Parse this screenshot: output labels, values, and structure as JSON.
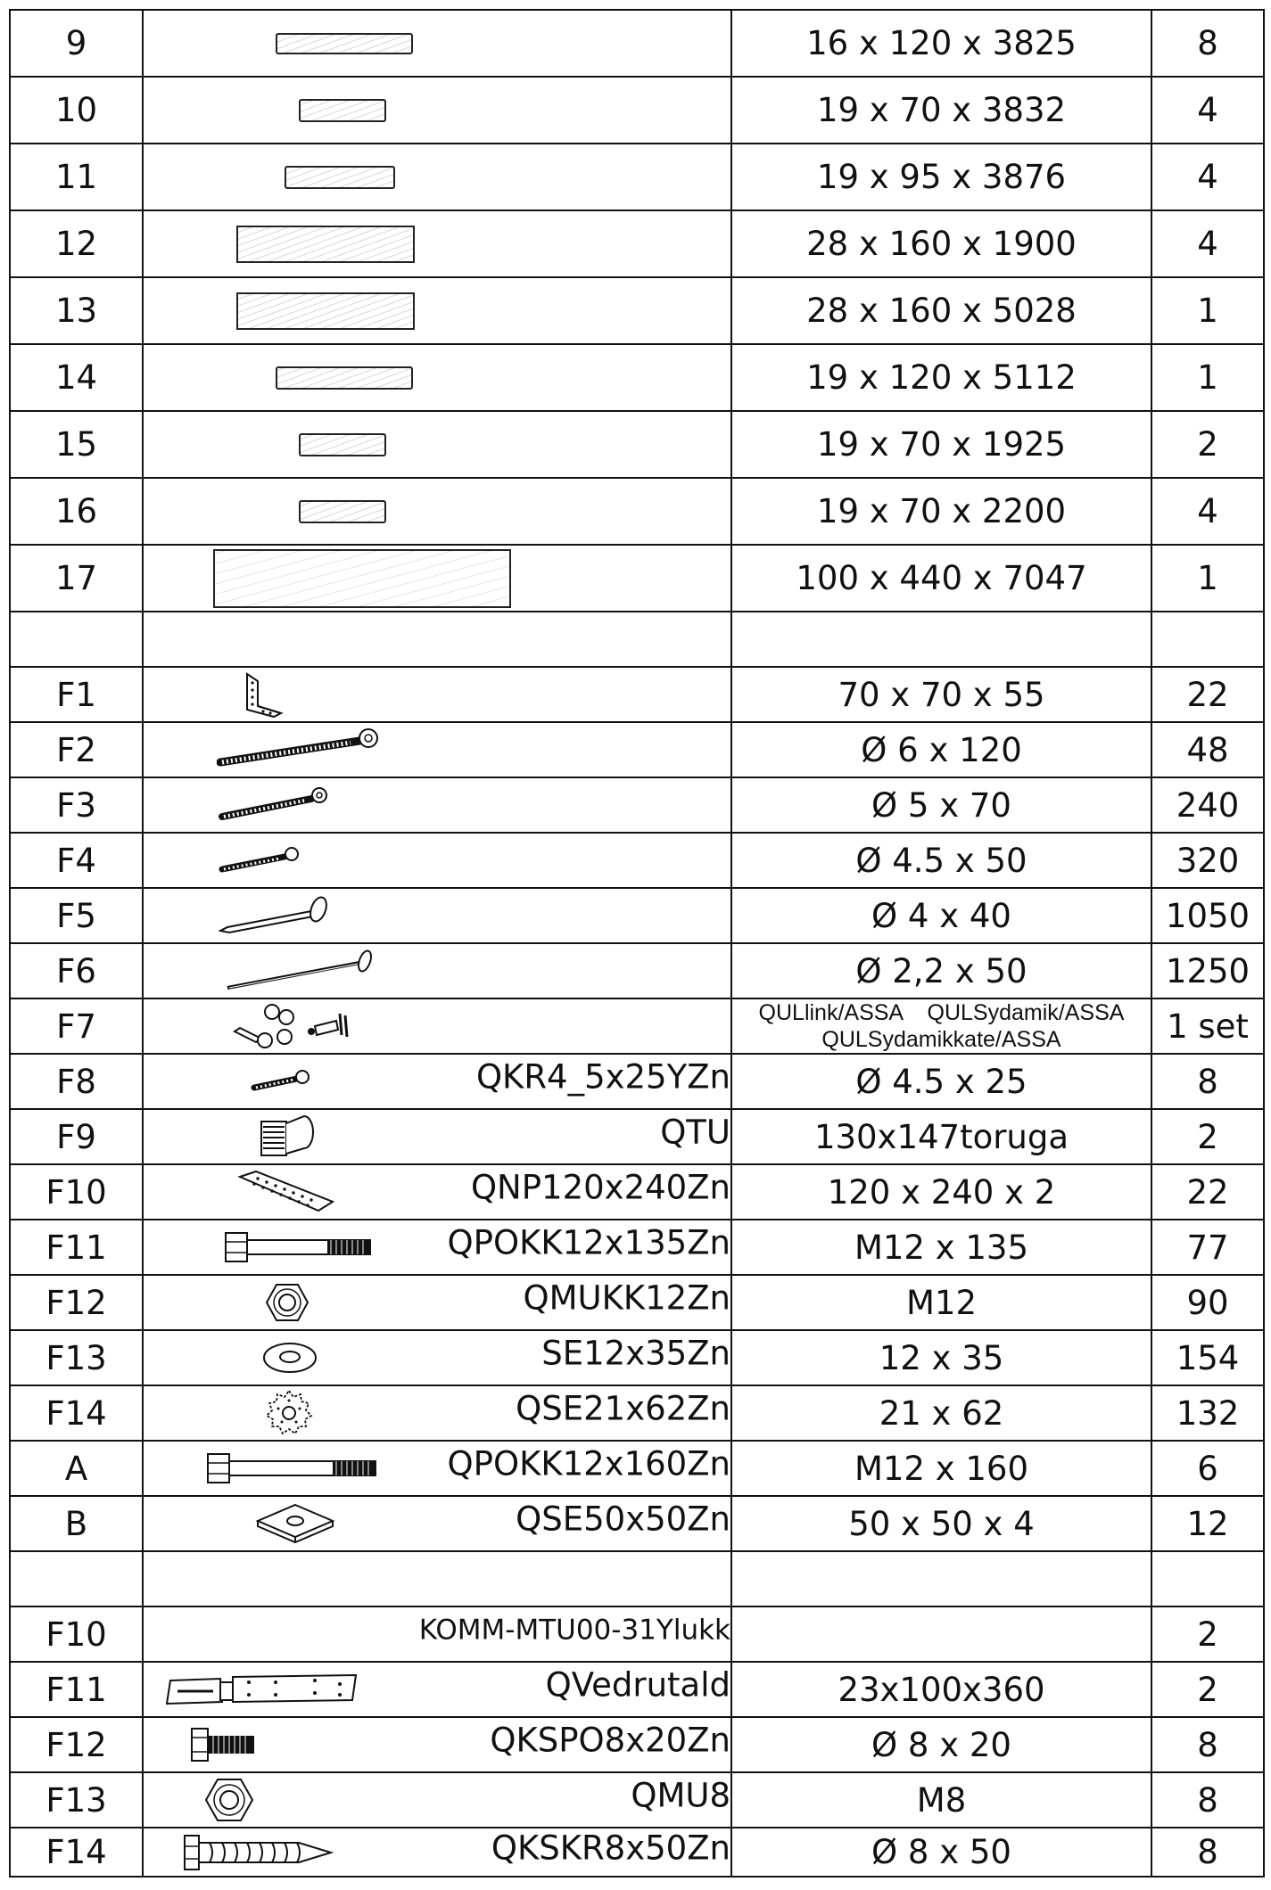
{
  "rows": [
    {
      "id": "9",
      "dim": "16 x 120 x 3825",
      "qty": "8",
      "icon": "board-icon"
    },
    {
      "id": "10",
      "dim": "19 x 70 x 3832",
      "qty": "4",
      "icon": "board-icon"
    },
    {
      "id": "11",
      "dim": "19 x 95 x 3876",
      "qty": "4",
      "icon": "board-icon"
    },
    {
      "id": "12",
      "dim": "28 x 160 x 1900",
      "qty": "4",
      "icon": "board-icon"
    },
    {
      "id": "13",
      "dim": "28 x 160 x 5028",
      "qty": "1",
      "icon": "board-icon"
    },
    {
      "id": "14",
      "dim": "19 x 120 x 5112",
      "qty": "1",
      "icon": "board-icon"
    },
    {
      "id": "15",
      "dim": "19 x 70 x 1925",
      "qty": "2",
      "icon": "board-icon"
    },
    {
      "id": "16",
      "dim": "19 x 70 x 2200",
      "qty": "4",
      "icon": "board-icon"
    },
    {
      "id": "17",
      "dim": "100 x 440 x 7047",
      "qty": "1",
      "icon": "beam-icon"
    },
    {
      "id": "F1",
      "dim": "70 x 70 x 55",
      "qty": "22",
      "icon": "angle-bracket-icon"
    },
    {
      "id": "F2",
      "dim": "Ø 6 x 120",
      "qty": "48",
      "icon": "screw-icon"
    },
    {
      "id": "F3",
      "dim": "Ø 5 x 70",
      "qty": "240",
      "icon": "screw-icon"
    },
    {
      "id": "F4",
      "dim": "Ø 4.5 x 50",
      "qty": "320",
      "icon": "screw-icon"
    },
    {
      "id": "F5",
      "dim": "Ø 4 x 40",
      "qty": "1050",
      "icon": "nail-icon"
    },
    {
      "id": "F6",
      "dim": "Ø 2,2 x 50",
      "qty": "1250",
      "icon": "nail-icon"
    },
    {
      "id": "F7",
      "dim_lines": [
        "QULlink/ASSA    QULSydamik/ASSA",
        "QULSydamikkate/ASSA"
      ],
      "qty": "1 set",
      "icon": "door-handle-lock-icon"
    },
    {
      "id": "F8",
      "code": "QKR4_5x25YZn",
      "dim": "Ø 4.5 x 25",
      "qty": "8",
      "icon": "screw-icon"
    },
    {
      "id": "F9",
      "code": "QTU",
      "dim": "130x147toruga",
      "qty": "2",
      "icon": "vent-grille-icon"
    },
    {
      "id": "F10",
      "code": "QNP120x240Zn",
      "dim": "120 x 240 x 2",
      "qty": "22",
      "icon": "nail-plate-icon"
    },
    {
      "id": "F11",
      "code": "QPOKK12x135Zn",
      "dim": "M12 x 135",
      "qty": "77",
      "icon": "bolt-icon"
    },
    {
      "id": "F12",
      "code": "QMUKK12Zn",
      "dim": "M12",
      "qty": "90",
      "icon": "hex-nut-icon"
    },
    {
      "id": "F13",
      "code": "SE12x35Zn",
      "dim": "12 x 35",
      "qty": "154",
      "icon": "washer-icon"
    },
    {
      "id": "F14",
      "code": "QSE21x62Zn",
      "dim": "21 x 62",
      "qty": "132",
      "icon": "toothed-washer-icon"
    },
    {
      "id": "A",
      "code": "QPOKK12x160Zn",
      "dim": "M12 x 160",
      "qty": "6",
      "icon": "bolt-icon"
    },
    {
      "id": "B",
      "code": "QSE50x50Zn",
      "dim": "50 x 50 x 4",
      "qty": "12",
      "icon": "square-washer-icon"
    },
    {
      "id": "F10",
      "code": "KOMM-MTU00-31Ylukk",
      "dim": "",
      "qty": "2",
      "icon": ""
    },
    {
      "id": "F11",
      "code": "QVedrutald",
      "dim": "23x100x360",
      "qty": "2",
      "icon": "strap-hinge-icon"
    },
    {
      "id": "F12",
      "code": "QKSPO8x20Zn",
      "dim": "Ø 8 x 20",
      "qty": "8",
      "icon": "short-bolt-icon"
    },
    {
      "id": "F13",
      "code": "QMU8",
      "dim": "M8",
      "qty": "8",
      "icon": "hex-nut-icon"
    },
    {
      "id": "F14",
      "code": "QKSKR8x50Zn",
      "dim": "Ø 8 x 50",
      "qty": "8",
      "icon": "lag-screw-icon"
    }
  ]
}
